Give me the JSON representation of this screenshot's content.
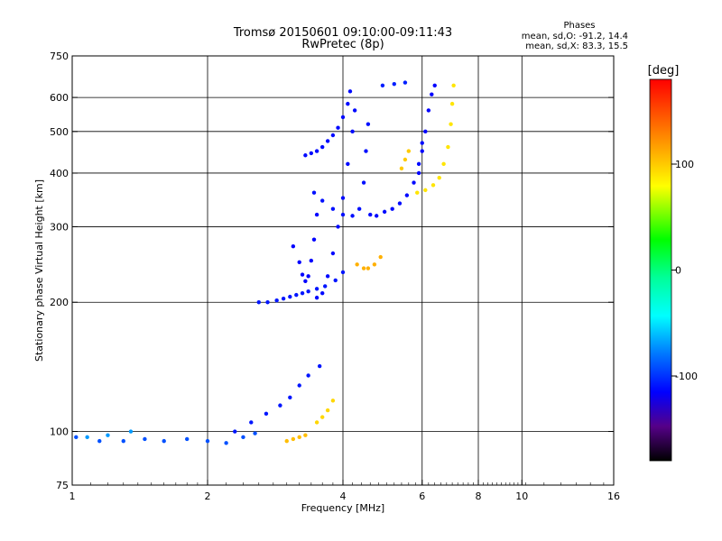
{
  "chart_data": {
    "type": "scatter",
    "title": "Tromsø 20150601 09:10:00-09:11:43",
    "subtitle": "RwPretec (8p)",
    "xlabel": "Frequency [MHz]",
    "ylabel": "Stationary phase Virtual Height [km]",
    "x_scale": "log",
    "y_scale": "log",
    "xlim": [
      1,
      16
    ],
    "ylim": [
      75,
      750
    ],
    "x_ticks": [
      1,
      2,
      4,
      6,
      8,
      10,
      16
    ],
    "x_tick_labels": [
      "1",
      "2",
      "4",
      "6",
      "8",
      "10",
      "16"
    ],
    "y_ticks": [
      75,
      100,
      200,
      300,
      400,
      500,
      600,
      750
    ],
    "y_tick_labels": [
      "75",
      "100",
      "200",
      "300",
      "400",
      "500",
      "600",
      "750"
    ],
    "grid": true,
    "phases": {
      "heading": "Phases",
      "line_o": "mean, sd,O: -91.2, 14.4",
      "line_x": "mean, sd,X:  83.3, 15.5"
    },
    "colorbar": {
      "label": "[deg]",
      "range": [
        -180,
        180
      ],
      "tick_values": [
        100,
        0,
        -100
      ],
      "tick_labels": [
        "100",
        "0",
        "-100"
      ]
    },
    "series": [
      {
        "traces": [
          {
            "f": [
              1.02,
              1.15,
              1.3,
              1.45,
              1.6,
              1.8,
              2.0,
              2.2,
              2.4,
              2.55
            ],
            "h": [
              97,
              95,
              95,
              96,
              95,
              96,
              95,
              94,
              97,
              99
            ],
            "phase": -88
          },
          {
            "f": [
              2.3,
              2.5,
              2.7,
              2.9,
              3.05,
              3.2,
              3.35,
              3.55
            ],
            "h": [
              100,
              105,
              110,
              115,
              120,
              128,
              135,
              142
            ],
            "phase": -108
          },
          {
            "f": [
              2.6,
              2.72,
              2.85,
              2.95,
              3.05,
              3.15,
              3.25,
              3.35,
              3.5,
              3.65,
              3.85,
              4.0
            ],
            "h": [
              200,
              200,
              202,
              204,
              206,
              208,
              210,
              212,
              215,
              218,
              225,
              235
            ],
            "phase": -108
          },
          {
            "f": [
              3.1,
              3.2,
              3.25,
              3.3,
              3.35,
              3.4,
              3.45,
              3.5
            ],
            "h": [
              270,
              248,
              232,
              224,
              230,
              250,
              280,
              320
            ],
            "phase": -115
          },
          {
            "f": [
              3.5,
              3.6,
              3.7,
              3.8,
              3.9,
              4.0,
              4.1,
              4.2,
              4.25
            ],
            "h": [
              205,
              210,
              230,
              260,
              300,
              350,
              420,
              500,
              560
            ],
            "phase": -112
          },
          {
            "f": [
              3.3,
              3.4,
              3.5,
              3.6,
              3.7,
              3.8,
              3.9,
              4.0,
              4.1,
              4.15
            ],
            "h": [
              440,
              445,
              450,
              460,
              475,
              490,
              510,
              540,
              580,
              620
            ],
            "phase": -112
          },
          {
            "f": [
              3.45,
              3.6,
              3.8,
              4.0,
              4.2,
              4.35,
              4.45,
              4.5,
              4.55
            ],
            "h": [
              360,
              345,
              330,
              320,
              318,
              330,
              380,
              450,
              520
            ],
            "phase": -110
          },
          {
            "f": [
              4.6,
              4.75,
              4.95,
              5.15,
              5.35,
              5.55,
              5.75,
              5.9,
              6.0
            ],
            "h": [
              320,
              318,
              325,
              330,
              340,
              355,
              380,
              420,
              470
            ],
            "phase": -112
          },
          {
            "f": [
              5.9,
              6.0,
              6.1,
              6.2,
              6.3,
              6.4
            ],
            "h": [
              400,
              450,
              500,
              560,
              610,
              640
            ],
            "phase": -115
          },
          {
            "f": [
              4.9,
              5.2,
              5.5
            ],
            "h": [
              640,
              645,
              650
            ],
            "phase": -105
          },
          {
            "f": [
              1.08,
              1.2,
              1.35
            ],
            "h": [
              97,
              98,
              100
            ],
            "phase": -65
          },
          {
            "f": [
              5.85,
              6.1,
              6.35,
              6.55,
              6.7,
              6.85,
              6.95,
              7.0,
              7.05
            ],
            "h": [
              360,
              365,
              375,
              390,
              420,
              460,
              520,
              580,
              640
            ],
            "phase": 105
          },
          {
            "f": [
              4.3,
              4.45,
              4.55,
              4.7,
              4.85
            ],
            "h": [
              245,
              240,
              240,
              245,
              255
            ],
            "phase": 125
          },
          {
            "f": [
              3.0,
              3.1,
              3.2,
              3.3
            ],
            "h": [
              95,
              96,
              97,
              98
            ],
            "phase": 120
          },
          {
            "f": [
              3.5,
              3.6,
              3.7,
              3.8
            ],
            "h": [
              105,
              108,
              112,
              118
            ],
            "phase": 110
          },
          {
            "f": [
              5.4,
              5.5,
              5.6
            ],
            "h": [
              410,
              430,
              450
            ],
            "phase": 115
          }
        ]
      }
    ]
  }
}
